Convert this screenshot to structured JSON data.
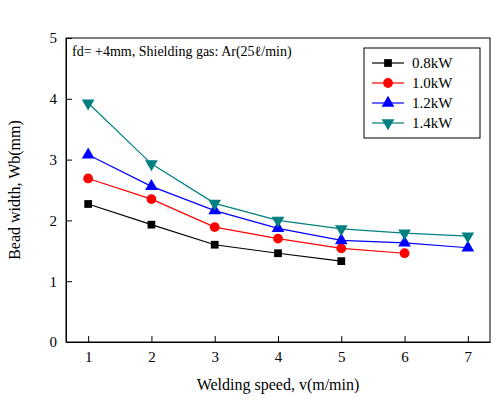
{
  "chart_data": {
    "type": "line",
    "annotation": "fd= +4mm, Shielding gas: Ar(25ℓ/min)",
    "x_label": "Welding speed, v(m/min)",
    "y_label": "Bead width, Wb(mm)",
    "x": [
      1,
      2,
      3,
      4,
      5,
      6,
      7
    ],
    "series": [
      {
        "name": "0.8kW",
        "color": "#000000",
        "marker": "square",
        "values": [
          2.27,
          1.93,
          1.6,
          1.46,
          1.33,
          null,
          null
        ]
      },
      {
        "name": "1.0kW",
        "color": "#ff0000",
        "marker": "circle",
        "values": [
          2.69,
          2.35,
          1.89,
          1.7,
          1.54,
          1.46,
          null
        ]
      },
      {
        "name": "1.2kW",
        "color": "#0000ff",
        "marker": "triangle-up",
        "values": [
          3.08,
          2.56,
          2.16,
          1.87,
          1.67,
          1.63,
          1.55
        ]
      },
      {
        "name": "1.4kW",
        "color": "#008080",
        "marker": "triangle-down",
        "values": [
          3.93,
          2.93,
          2.28,
          2.0,
          1.86,
          1.79,
          1.74
        ]
      }
    ],
    "xlim": [
      0.65,
      7.35
    ],
    "xticks": [
      1,
      2,
      3,
      4,
      5,
      6,
      7
    ],
    "ylim": [
      0,
      5
    ],
    "yticks": [
      0,
      1,
      2,
      3,
      4,
      5
    ],
    "legend": "upper right"
  }
}
